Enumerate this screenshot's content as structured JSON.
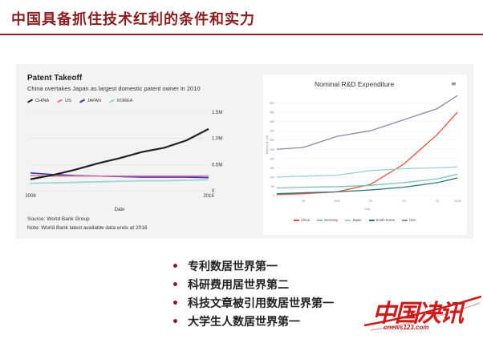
{
  "slide": {
    "title": "中国具备抓住技术红利的条件和实力",
    "bullets": [
      "专利数居世界第一",
      "科研费用居世界第二",
      "科技文章被引用数居世界第一",
      "大学生人数居世界第一"
    ]
  },
  "logo": {
    "text": "中国决讯",
    "url_text": "cnews123.com"
  },
  "charts_meta": {
    "patent": {
      "title": "Patent Takeoff",
      "subtitle": "China overtakes Japan as largest domestic patent owner in 2010",
      "source": "Source: World Bank Group",
      "note": "Note: World Bank latest available data ends at 2016"
    },
    "rd": {
      "title": "Nominal R&D Expenditure",
      "menu_icon": "hamburger-menu-icon"
    }
  },
  "chart_data": [
    {
      "type": "line",
      "title": "Patent Takeoff",
      "subtitle": "China overtakes Japan as largest domestic patent owner in 2010",
      "xlabel": "Date",
      "ylabel": "",
      "x": [
        2008,
        2009,
        2010,
        2011,
        2012,
        2013,
        2014,
        2015,
        2016
      ],
      "xticks": [
        "2008",
        "2016"
      ],
      "yticks": [
        {
          "v": 0,
          "label": "0"
        },
        {
          "v": 0.5,
          "label": "0.5M"
        },
        {
          "v": 1.0,
          "label": "1.0M"
        },
        {
          "v": 1.5,
          "label": "1.5M"
        }
      ],
      "ylim": [
        0,
        1.5
      ],
      "series": [
        {
          "name": "CHINA",
          "color": "#222222",
          "values": [
            0.22,
            0.3,
            0.4,
            0.52,
            0.62,
            0.74,
            0.82,
            0.96,
            1.18
          ]
        },
        {
          "name": "US",
          "color": "#d87aa6",
          "values": [
            0.29,
            0.28,
            0.28,
            0.28,
            0.28,
            0.28,
            0.28,
            0.28,
            0.28
          ]
        },
        {
          "name": "JAPAN",
          "color": "#4a2fb0",
          "values": [
            0.34,
            0.31,
            0.29,
            0.28,
            0.27,
            0.26,
            0.26,
            0.26,
            0.25
          ]
        },
        {
          "name": "KOREA",
          "color": "#8fd6cf",
          "values": [
            0.14,
            0.15,
            0.16,
            0.17,
            0.18,
            0.19,
            0.19,
            0.2,
            0.21
          ]
        }
      ],
      "legend": "top-left"
    },
    {
      "type": "line",
      "title": "Nominal R&D Expenditure",
      "xlabel": "Year",
      "ylabel": "Billions ($, US)",
      "x": [
        1991,
        1995,
        2000,
        2005,
        2010,
        2015,
        2018
      ],
      "xticks": [
        "95",
        "2000",
        "05",
        "10",
        "15",
        "2018"
      ],
      "ylim": [
        0,
        550
      ],
      "yticks": [
        0,
        50,
        100,
        150,
        200,
        250,
        300,
        350,
        400,
        450,
        500
      ],
      "series": [
        {
          "name": "China",
          "color": "#d9533a",
          "values": [
            5,
            10,
            20,
            60,
            170,
            330,
            450
          ]
        },
        {
          "name": "Germany",
          "color": "#7fc4b5",
          "values": [
            40,
            45,
            48,
            55,
            70,
            90,
            115
          ]
        },
        {
          "name": "Japan",
          "color": "#9fd0d6",
          "values": [
            100,
            105,
            110,
            135,
            145,
            150,
            155
          ]
        },
        {
          "name": "South Korea",
          "color": "#2f7a7a",
          "values": [
            10,
            15,
            20,
            30,
            45,
            70,
            95
          ]
        },
        {
          "name": "USA",
          "color": "#8a8aa0",
          "values": [
            250,
            260,
            320,
            350,
            410,
            470,
            540
          ]
        }
      ],
      "legend": "bottom"
    }
  ]
}
